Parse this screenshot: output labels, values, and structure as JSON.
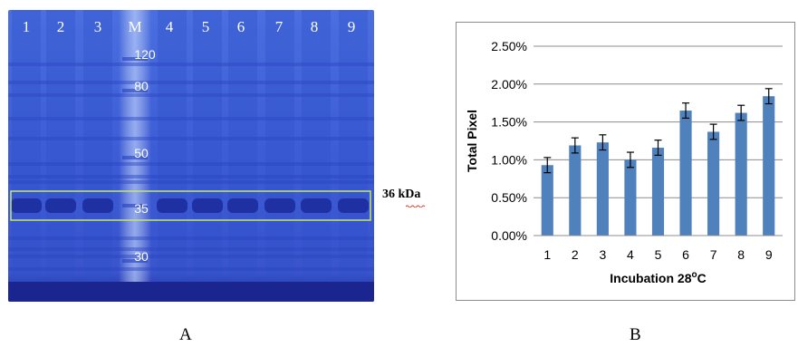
{
  "panels": {
    "left_letter": "A",
    "right_letter": "B"
  },
  "gel": {
    "lane_labels": [
      "1",
      "2",
      "3",
      "M",
      "4",
      "5",
      "6",
      "7",
      "8",
      "9"
    ],
    "marker_labels": [
      "120",
      "80",
      "50",
      "35",
      "30"
    ],
    "band_annotation": "36 kDa",
    "colors": {
      "gel_background": "#3d5fd6",
      "band_dark": "#1a2a9a",
      "highlight_box": "#c8e66a"
    }
  },
  "chart_data": {
    "type": "bar",
    "categories": [
      "1",
      "2",
      "3",
      "4",
      "5",
      "6",
      "7",
      "8",
      "9"
    ],
    "values": [
      0.93,
      1.19,
      1.23,
      1.0,
      1.16,
      1.65,
      1.37,
      1.62,
      1.84
    ],
    "errors": [
      0.1,
      0.1,
      0.1,
      0.1,
      0.1,
      0.1,
      0.1,
      0.1,
      0.1
    ],
    "title": "",
    "xlabel": "Incubation 28",
    "xlabel_superscript": "o",
    "xlabel_suffix": "C",
    "ylabel": "Total Pixel",
    "ylim": [
      0,
      2.5
    ],
    "yticks": [
      0,
      0.5,
      1.0,
      1.5,
      2.0,
      2.5
    ],
    "ytick_labels": [
      "0.00%",
      "0.50%",
      "1.00%",
      "1.50%",
      "2.00%",
      "2.50%"
    ],
    "grid": true,
    "legend": "none",
    "bar_color": "#4f81bd"
  }
}
